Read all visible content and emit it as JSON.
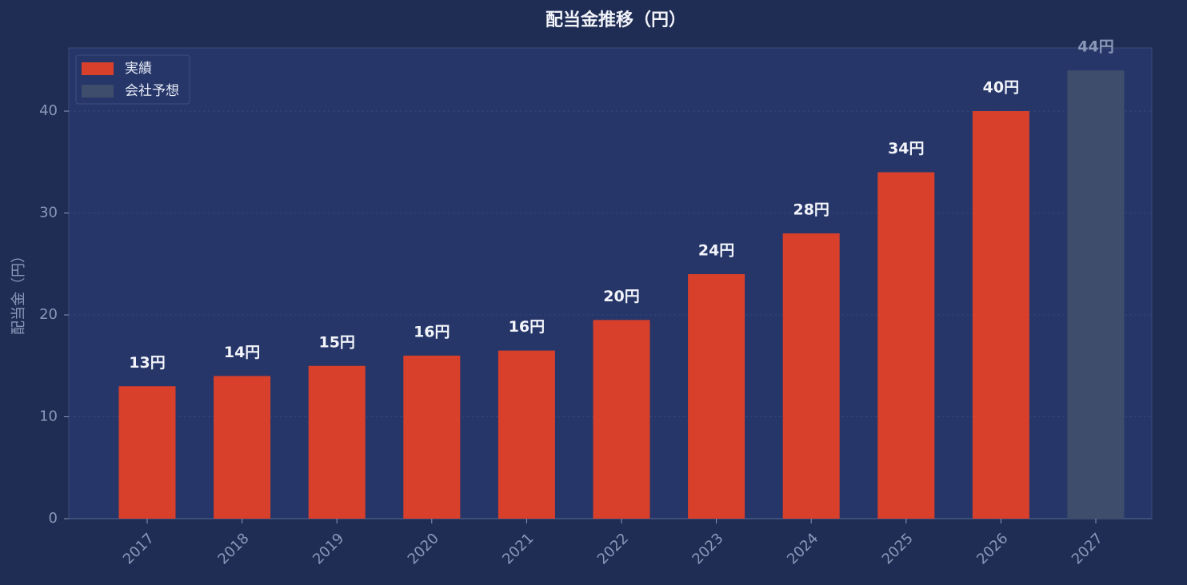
{
  "chart_data": {
    "type": "bar",
    "title": "配当金推移（円）",
    "y_label": "配当金（円）",
    "categories": [
      "2017",
      "2018",
      "2019",
      "2020",
      "2021",
      "2022",
      "2023",
      "2024",
      "2025",
      "2026",
      "2027"
    ],
    "series": [
      {
        "name": "実績",
        "color": "#d9402b",
        "values": [
          13,
          14,
          15,
          16,
          16.5,
          19.5,
          24,
          28,
          34,
          40,
          null
        ],
        "value_labels": [
          "13円",
          "14円",
          "15円",
          "16円",
          "16円",
          "20円",
          "24円",
          "28円",
          "34円",
          "40円",
          null
        ]
      },
      {
        "name": "会社予想",
        "color": "#3d4d6b",
        "values": [
          null,
          null,
          null,
          null,
          null,
          null,
          null,
          null,
          null,
          null,
          44
        ],
        "value_labels": [
          null,
          null,
          null,
          null,
          null,
          null,
          null,
          null,
          null,
          null,
          "44円"
        ]
      }
    ],
    "ylim": [
      0,
      46.2
    ],
    "yticks": [
      0,
      10,
      20,
      30,
      40
    ],
    "grid": true,
    "legend": "upper left"
  }
}
